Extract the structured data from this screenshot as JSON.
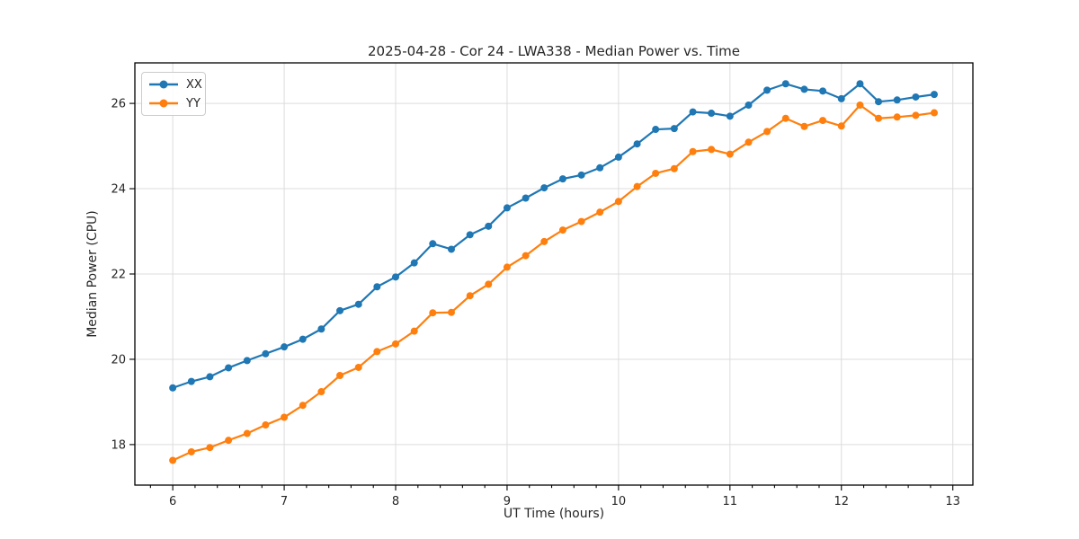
{
  "chart_data": {
    "type": "line",
    "title": "2025-04-28 - Cor 24 - LWA338 - Median Power vs. Time",
    "xlabel": "UT Time (hours)",
    "ylabel": "Median Power (CPU)",
    "xlim": [
      5.66,
      13.18
    ],
    "ylim": [
      17.05,
      26.95
    ],
    "xticks": [
      6,
      7,
      8,
      9,
      10,
      11,
      12,
      13
    ],
    "yticks": [
      18,
      20,
      22,
      24,
      26
    ],
    "x_minor_step": 0.2,
    "grid": true,
    "legend_position": "upper-left",
    "x": [
      6.0,
      6.167,
      6.333,
      6.5,
      6.667,
      6.833,
      7.0,
      7.167,
      7.333,
      7.5,
      7.667,
      7.833,
      8.0,
      8.167,
      8.333,
      8.5,
      8.667,
      8.833,
      9.0,
      9.167,
      9.333,
      9.5,
      9.667,
      9.833,
      10.0,
      10.167,
      10.333,
      10.5,
      10.667,
      10.833,
      11.0,
      11.167,
      11.333,
      11.5,
      11.667,
      11.833,
      12.0,
      12.167,
      12.333,
      12.5,
      12.667,
      12.833
    ],
    "series": [
      {
        "name": "XX",
        "color": "#1f77b4",
        "values": [
          19.33,
          19.48,
          19.59,
          19.8,
          19.97,
          20.13,
          20.29,
          20.47,
          20.71,
          21.14,
          21.29,
          21.7,
          21.93,
          22.26,
          22.71,
          22.58,
          22.92,
          23.12,
          23.55,
          23.78,
          24.02,
          24.23,
          24.32,
          24.49,
          24.74,
          25.05,
          25.39,
          25.41,
          25.8,
          25.77,
          25.7,
          25.96,
          26.31,
          26.46,
          26.33,
          26.29,
          26.11,
          26.46,
          26.04,
          26.08,
          26.15,
          26.21
        ]
      },
      {
        "name": "YY",
        "color": "#ff7f0e",
        "values": [
          17.63,
          17.83,
          17.93,
          18.1,
          18.26,
          18.46,
          18.64,
          18.92,
          19.24,
          19.62,
          19.81,
          20.18,
          20.36,
          20.66,
          21.09,
          21.1,
          21.49,
          21.76,
          22.16,
          22.43,
          22.76,
          23.03,
          23.23,
          23.45,
          23.7,
          24.05,
          24.36,
          24.47,
          24.87,
          24.92,
          24.81,
          25.09,
          25.34,
          25.65,
          25.46,
          25.6,
          25.47,
          25.96,
          25.65,
          25.68,
          25.72,
          25.78
        ]
      }
    ],
    "style": {
      "grid_color": "#dcdcdc",
      "spine_color": "#000000",
      "tick_label_color": "#262626",
      "marker_radius": 4,
      "line_width": 2.2
    }
  }
}
